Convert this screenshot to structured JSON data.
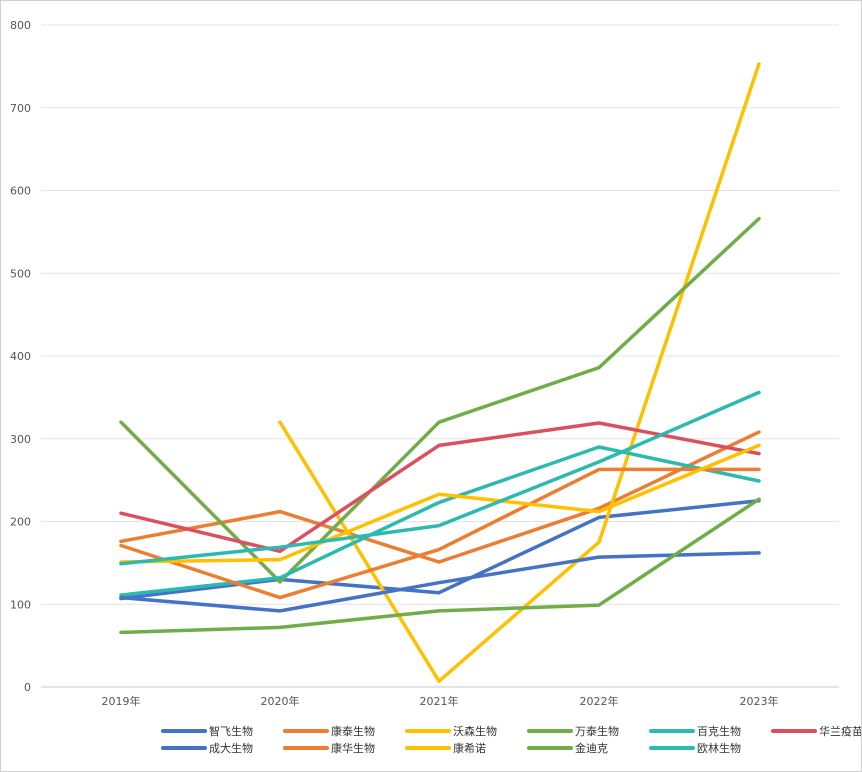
{
  "chart_data": {
    "type": "line",
    "categories": [
      "2019年",
      "2020年",
      "2021年",
      "2022年",
      "2023年"
    ],
    "ylim": [
      0,
      800
    ],
    "yticks": [
      0,
      100,
      200,
      300,
      400,
      500,
      600,
      700,
      800
    ],
    "grid": true,
    "legend_position": "bottom",
    "series": [
      {
        "name": "智飞生物",
        "color": "#4472c4",
        "values": [
          107,
          130,
          114,
          205,
          225
        ]
      },
      {
        "name": "康泰生物",
        "color": "#ed7d31",
        "values": [
          176,
          212,
          151,
          216,
          308
        ]
      },
      {
        "name": "沃森生物",
        "color": "#ffc000",
        "values": [
          null,
          320,
          7,
          175,
          753
        ]
      },
      {
        "name": "万泰生物",
        "color": "#70ad47",
        "values": [
          320,
          127,
          320,
          386,
          566
        ]
      },
      {
        "name": "百克生物",
        "color": "#2bb9b0",
        "values": [
          111,
          132,
          223,
          290,
          249
        ]
      },
      {
        "name": "华兰疫苗",
        "color": "#dc4f5e",
        "values": [
          210,
          164,
          292,
          319,
          282
        ]
      },
      {
        "name": "成大生物",
        "color": "#4472c4",
        "values": [
          108,
          92,
          126,
          157,
          162
        ]
      },
      {
        "name": "康华生物",
        "color": "#ed7d31",
        "values": [
          171,
          108,
          166,
          263,
          263
        ]
      },
      {
        "name": "康希诺",
        "color": "#ffc000",
        "values": [
          151,
          154,
          233,
          212,
          292
        ]
      },
      {
        "name": "金迪克",
        "color": "#70ad47",
        "values": [
          66,
          72,
          92,
          99,
          227
        ]
      },
      {
        "name": "欧林生物",
        "color": "#2bb9b0",
        "values": [
          149,
          169,
          195,
          272,
          356
        ]
      }
    ]
  }
}
